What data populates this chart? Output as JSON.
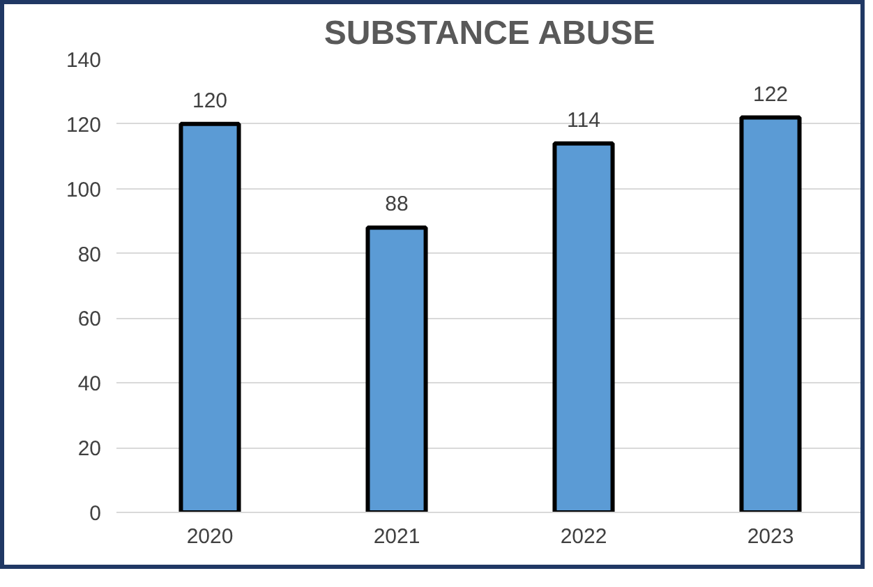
{
  "chart_data": {
    "type": "bar",
    "title": "SUBSTANCE ABUSE",
    "categories": [
      "2020",
      "2021",
      "2022",
      "2023"
    ],
    "values": [
      120,
      88,
      114,
      122
    ],
    "color": "#5b9bd5",
    "ylim": [
      0,
      140
    ],
    "yticks": [
      0,
      20,
      40,
      60,
      80,
      100,
      120,
      140
    ],
    "grid": "y",
    "data_labels": true
  }
}
